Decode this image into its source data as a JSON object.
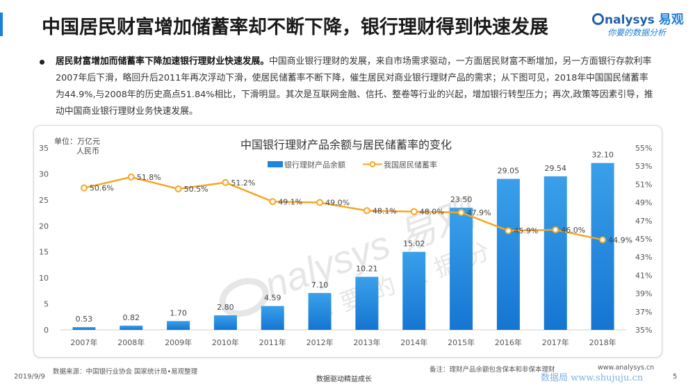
{
  "header": {
    "title": "中国居民财富增加储蓄率却不断下降，银行理财得到快速发展",
    "logo_text": "nalysys",
    "logo_cn": "易观",
    "logo_sub": "你要的数据分析"
  },
  "bullet": {
    "bold": "居民财富增加而储蓄率下降加速银行理财业快速发展。",
    "text": "中国商业银行理财的发展，来自市场需求驱动，一方面居民财富不断增加，另一方面银行存款利率2007年后下滑，略回升后2011年再次浮动下滑，使居民储蓄率不断下降，催生居民对商业银行理财产品的需求；从下图可见，2018年中国国民储蓄率为44.9%,与2008年的历史高点51.84%相比，下滑明显。其次是互联网金融、信托、整卷等行业的兴起，增加银行转型压力；再次,政策等因素引导，推动中国商业银行理财业务快速发展。"
  },
  "chart_data": {
    "type": "bar",
    "title": "中国银行理财产品余额与居民储蓄率的变化",
    "unit_label_line1": "单位：万亿元",
    "unit_label_line2": "人民币",
    "categories": [
      "2007年",
      "2008年",
      "2009年",
      "2010年",
      "2011年",
      "2012年",
      "2013年",
      "2014年",
      "2015年",
      "2016年",
      "2017年",
      "2018年"
    ],
    "series": [
      {
        "name": "银行理财产品余额",
        "kind": "bar",
        "axis": "left",
        "values": [
          0.53,
          0.82,
          1.7,
          2.8,
          4.59,
          7.1,
          10.21,
          15.02,
          23.5,
          29.05,
          29.54,
          32.1
        ],
        "labels": [
          "0.53",
          "0.82",
          "1.70",
          "2.80",
          "4.59",
          "7.10",
          "10.21",
          "15.02",
          "23.50",
          "29.05",
          "29.54",
          "32.10"
        ]
      },
      {
        "name": "我国居民储蓄率",
        "kind": "line",
        "axis": "right",
        "values": [
          50.6,
          51.8,
          50.5,
          51.2,
          49.1,
          49.0,
          48.1,
          48.0,
          47.9,
          45.9,
          46.0,
          44.9
        ],
        "labels": [
          "50.6%",
          "51.8%",
          "50.5%",
          "51.2%",
          "49.1%",
          "49.0%",
          "48.1%",
          "48.0%",
          "47.9%",
          "45.9%",
          "46.0%",
          "44.9%"
        ]
      }
    ],
    "ylim_left": [
      0,
      35
    ],
    "yticks_left": [
      "0",
      "5",
      "10",
      "15",
      "20",
      "25",
      "30",
      "35"
    ],
    "ylim_right": [
      35,
      55
    ],
    "yticks_right": [
      "35%",
      "37%",
      "39%",
      "41%",
      "43%",
      "45%",
      "47%",
      "49%",
      "51%",
      "53%",
      "55%"
    ],
    "grid": false,
    "legend_position": "top-center",
    "colors": {
      "bar_top": "#3aa0ea",
      "bar_bottom": "#1575d2",
      "line": "#f5a623",
      "text": "#555555"
    }
  },
  "watermark": {
    "brand": "nalysys 易观",
    "sub": "你要的数据分析"
  },
  "footer": {
    "source": "数据来源：中国银行业协会  国家统计局•易观整理",
    "note": "备注：理财产品余额包含保本和非保本理财",
    "url": "www.analysys.cn",
    "date": "2019/9/9",
    "slogan": "数据驱动精益成长",
    "page": "5",
    "site_watermark": "数据局  www.shujuju.cn"
  }
}
